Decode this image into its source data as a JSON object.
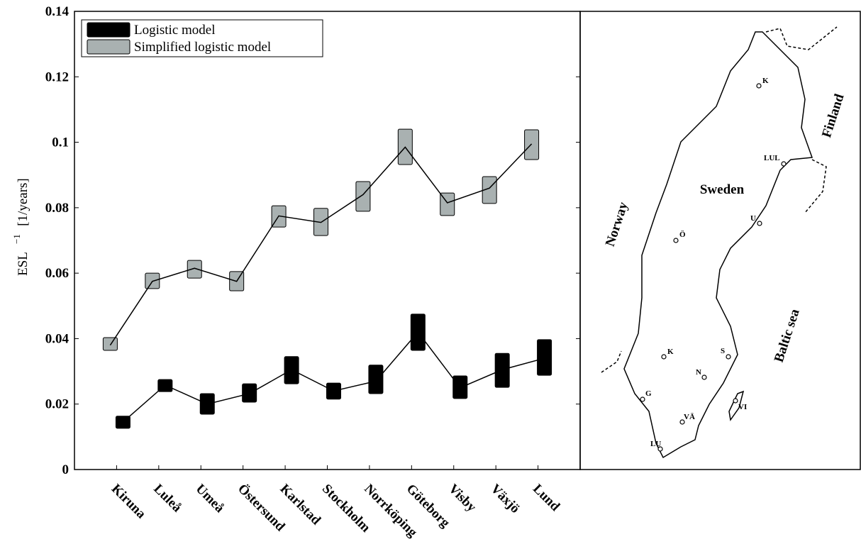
{
  "chart_data": {
    "type": "box-range",
    "y_label": "ESL",
    "y_label_sup": "−1",
    "y_label_unit": "[1/years]",
    "categories": [
      "Kiruna",
      "Luleå",
      "Umeå",
      "Östersund",
      "Karlstad",
      "Stockholm",
      "Norrköping",
      "Göteborg",
      "Visby",
      "Växjö",
      "Lund"
    ],
    "series": [
      {
        "name": "Logistic model",
        "color": "#000000",
        "values": [
          0.0145,
          0.0258,
          0.02,
          0.0232,
          0.0305,
          0.024,
          0.027,
          0.042,
          0.025,
          0.0305,
          0.034
        ],
        "low": [
          0.0126,
          0.0238,
          0.0169,
          0.0206,
          0.0262,
          0.0215,
          0.0232,
          0.0364,
          0.0217,
          0.0251,
          0.0288
        ],
        "high": [
          0.0163,
          0.0275,
          0.0232,
          0.0262,
          0.0345,
          0.0264,
          0.0319,
          0.0475,
          0.0286,
          0.0355,
          0.0397
        ]
      },
      {
        "name": "Simplified logistic model",
        "color": "#a9b1b1",
        "values": [
          0.038,
          0.0575,
          0.0615,
          0.0575,
          0.0775,
          0.0755,
          0.084,
          0.0985,
          0.0815,
          0.086,
          0.0995
        ],
        "low": [
          0.0364,
          0.0553,
          0.0585,
          0.0546,
          0.0741,
          0.0715,
          0.0789,
          0.0932,
          0.0776,
          0.0813,
          0.0947
        ],
        "high": [
          0.0403,
          0.06,
          0.0639,
          0.0605,
          0.0806,
          0.0798,
          0.088,
          0.104,
          0.0845,
          0.0895,
          0.1038
        ]
      }
    ],
    "ylim": [
      0,
      0.14
    ],
    "yticks": [
      0,
      0.02,
      0.04,
      0.06,
      0.08,
      0.1,
      0.12,
      0.14
    ],
    "legend": "upper left"
  },
  "map": {
    "cities": [
      "K",
      "LUL",
      "U",
      "Ö",
      "K",
      "S",
      "N",
      "G",
      "VÄ",
      "VI",
      "LU"
    ],
    "countries": [
      "Sweden",
      "Norway",
      "Finland",
      "Baltic sea"
    ]
  }
}
